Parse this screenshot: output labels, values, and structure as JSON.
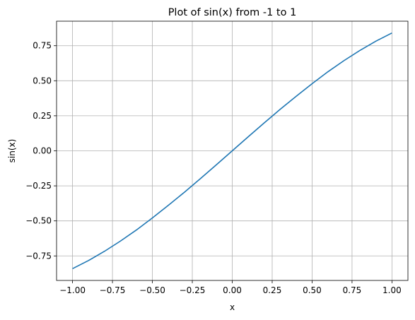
{
  "chart_data": {
    "type": "line",
    "title": "Plot of sin(x) from -1 to 1",
    "xlabel": "x",
    "ylabel": "sin(x)",
    "xlim": [
      -1.1,
      1.1
    ],
    "ylim": [
      -0.925,
      0.925
    ],
    "grid": true,
    "x_ticks": [
      -1.0,
      -0.75,
      -0.5,
      -0.25,
      0.0,
      0.25,
      0.5,
      0.75,
      1.0
    ],
    "x_tick_labels": [
      "−1.00",
      "−0.75",
      "−0.50",
      "−0.25",
      "0.00",
      "0.25",
      "0.50",
      "0.75",
      "1.00"
    ],
    "y_ticks": [
      -0.75,
      -0.5,
      -0.25,
      0.0,
      0.25,
      0.5,
      0.75
    ],
    "y_tick_labels": [
      "−0.75",
      "−0.50",
      "−0.25",
      "0.00",
      "0.25",
      "0.50",
      "0.75"
    ],
    "series": [
      {
        "color": "#1f77b4",
        "x": [
          -1.0,
          -0.9,
          -0.8,
          -0.7,
          -0.6,
          -0.5,
          -0.4,
          -0.3,
          -0.2,
          -0.1,
          0.0,
          0.1,
          0.2,
          0.3,
          0.4,
          0.5,
          0.6,
          0.7,
          0.8,
          0.9,
          1.0
        ],
        "y": [
          -0.841,
          -0.783,
          -0.717,
          -0.644,
          -0.565,
          -0.479,
          -0.389,
          -0.296,
          -0.199,
          -0.1,
          0.0,
          0.1,
          0.199,
          0.296,
          0.389,
          0.479,
          0.565,
          0.644,
          0.717,
          0.783,
          0.841
        ]
      }
    ]
  },
  "colors": {
    "line": "#1f77b4",
    "grid": "#b0b0b0",
    "axes": "#000000",
    "background": "#ffffff"
  }
}
